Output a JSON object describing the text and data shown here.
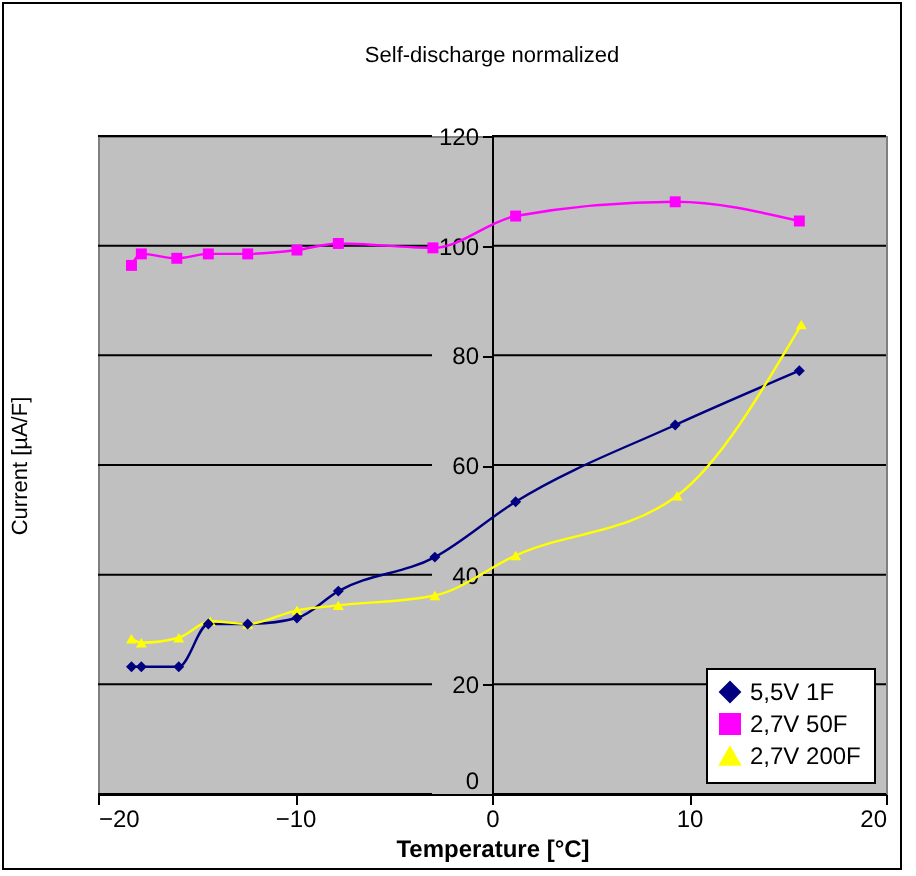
{
  "chart_data": {
    "type": "line",
    "title": "Self-discharge normalized",
    "xlabel": "Temperature [°C]",
    "ylabel": "Current [µA/F]",
    "xlim": [
      -20,
      20
    ],
    "xticks": [
      -20,
      -10,
      0,
      10,
      20
    ],
    "ylim": [
      0,
      120
    ],
    "yticks": [
      0,
      20,
      40,
      60,
      80,
      100,
      120
    ],
    "grid": "y",
    "legend": "bottom right",
    "series": [
      {
        "name": "5,5V 1F",
        "color": "#000080",
        "marker": "diamond",
        "x": [
          -18.3,
          -17.8,
          -15.9,
          -14.4,
          -12.4,
          -9.9,
          -7.8,
          -2.9,
          1.2,
          9.3,
          15.6
        ],
        "values": [
          23.2,
          23.2,
          23.2,
          31.0,
          31.0,
          32.1,
          37.0,
          43.2,
          53.3,
          67.3,
          77.2
        ]
      },
      {
        "name": "2,7V 50F",
        "color": "#ff00ff",
        "marker": "square",
        "x": [
          -18.3,
          -17.8,
          -16.0,
          -14.4,
          -12.4,
          -9.9,
          -7.8,
          -3.0,
          1.2,
          9.3,
          15.6
        ],
        "values": [
          96.4,
          98.5,
          97.7,
          98.5,
          98.5,
          99.2,
          100.4,
          99.6,
          105.4,
          108,
          104.5
        ]
      },
      {
        "name": "2,7V 200F",
        "color": "#ffff00",
        "marker": "triangle",
        "x": [
          -18.3,
          -17.8,
          -15.9,
          -14.3,
          -12.4,
          -9.9,
          -7.8,
          -2.9,
          1.2,
          9.4,
          15.7
        ],
        "values": [
          28.3,
          27.6,
          28.5,
          31.5,
          31.0,
          33.5,
          34.4,
          36.2,
          43.5,
          54.4,
          85.6
        ]
      }
    ]
  }
}
